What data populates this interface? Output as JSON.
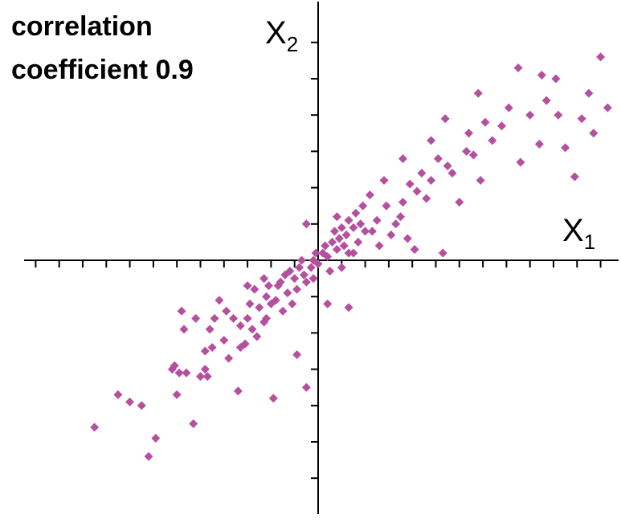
{
  "chart_data": {
    "type": "scatter",
    "title": "",
    "annotation": [
      "correlation",
      "coefficient 0.9"
    ],
    "xlabel": {
      "base": "X",
      "subscript": "1"
    },
    "ylabel": {
      "base": "X",
      "subscript": "2"
    },
    "xlim": [
      -12,
      12.5
    ],
    "ylim": [
      -7,
      7.1
    ],
    "x_ticks": [
      -12,
      -11,
      -10,
      -9,
      -8,
      -7,
      -6,
      -5,
      -4,
      -3,
      -2,
      -1,
      1,
      2,
      3,
      4,
      5,
      6,
      7,
      8,
      9,
      10,
      11,
      12
    ],
    "y_ticks": [
      -6,
      -5,
      -4,
      -3,
      -2,
      -1,
      1,
      2,
      3,
      4,
      5,
      6
    ],
    "grid": false,
    "legend": "none",
    "marker": "diamond",
    "colors": {
      "marker": "#b5509f",
      "axis": "#000000"
    },
    "series": [
      {
        "points": [
          [
            -9.5,
            -4.6
          ],
          [
            -8.5,
            -3.7
          ],
          [
            -7.5,
            -4.0
          ],
          [
            -7.2,
            -5.4
          ],
          [
            -6.0,
            -3.7
          ],
          [
            -6.2,
            -3.0
          ],
          [
            -6.1,
            -2.9
          ],
          [
            -5.9,
            -3.1
          ],
          [
            -5.6,
            -3.1
          ],
          [
            -5.0,
            -3.2
          ],
          [
            -4.8,
            -3.0
          ],
          [
            -4.7,
            -3.2
          ],
          [
            -4.8,
            -2.5
          ],
          [
            -4.5,
            -2.4
          ],
          [
            -4.6,
            -1.9
          ],
          [
            -4.4,
            -1.6
          ],
          [
            -3.9,
            -1.4
          ],
          [
            -5.7,
            -1.9
          ],
          [
            -5.8,
            -1.4
          ],
          [
            -5.2,
            -1.6
          ],
          [
            -4.0,
            -2.2
          ],
          [
            -3.6,
            -1.6
          ],
          [
            -4.2,
            -1.1
          ],
          [
            -3.8,
            -2.7
          ],
          [
            -3.3,
            -2.4
          ],
          [
            -3.1,
            -2.3
          ],
          [
            -3.0,
            -1.6
          ],
          [
            -3.3,
            -1.8
          ],
          [
            -2.8,
            -1.9
          ],
          [
            -2.6,
            -2.1
          ],
          [
            -2.9,
            -1.2
          ],
          [
            -2.7,
            -0.8
          ],
          [
            -3.0,
            -0.7
          ],
          [
            -2.5,
            -1.3
          ],
          [
            -2.3,
            -1.7
          ],
          [
            -2.2,
            -1.6
          ],
          [
            -2.2,
            -1.0
          ],
          [
            -2.0,
            -1.2
          ],
          [
            -2.3,
            -0.5
          ],
          [
            -2.1,
            -0.7
          ],
          [
            -1.8,
            -1.1
          ],
          [
            -1.7,
            -0.7
          ],
          [
            -1.6,
            -0.6
          ],
          [
            -1.5,
            -1.4
          ],
          [
            -1.3,
            -0.9
          ],
          [
            -1.4,
            -0.4
          ],
          [
            -1.2,
            -0.3
          ],
          [
            -1.0,
            -0.5
          ],
          [
            -0.9,
            -0.8
          ],
          [
            -1.1,
            -1.2
          ],
          [
            -0.8,
            -0.2
          ],
          [
            -0.6,
            -0.4
          ],
          [
            -0.5,
            -0.6
          ],
          [
            -0.7,
            0.0
          ],
          [
            -0.3,
            -0.2
          ],
          [
            -0.2,
            0.0
          ],
          [
            -0.2,
            -0.5
          ],
          [
            -0.1,
            0.2
          ],
          [
            0.0,
            -0.1
          ],
          [
            0.2,
            0.2
          ],
          [
            0.3,
            0.4
          ],
          [
            0.4,
            0.1
          ],
          [
            0.5,
            -0.3
          ],
          [
            0.6,
            0.5
          ],
          [
            0.7,
            0.8
          ],
          [
            0.8,
            0.3
          ],
          [
            0.9,
            0.6
          ],
          [
            1.0,
            0.9
          ],
          [
            1.0,
            -0.2
          ],
          [
            1.1,
            0.4
          ],
          [
            1.2,
            0.7
          ],
          [
            1.3,
            1.1
          ],
          [
            1.3,
            0.2
          ],
          [
            1.5,
            0.9
          ],
          [
            1.5,
            0.2
          ],
          [
            1.6,
            1.3
          ],
          [
            1.7,
            0.5
          ],
          [
            1.8,
            1.0
          ],
          [
            1.9,
            1.5
          ],
          [
            2.0,
            0.8
          ],
          [
            2.3,
            0.8
          ],
          [
            2.5,
            1.1
          ],
          [
            2.6,
            0.4
          ],
          [
            2.9,
            1.5
          ],
          [
            3.1,
            0.7
          ],
          [
            3.3,
            1.0
          ],
          [
            3.5,
            1.2
          ],
          [
            3.6,
            1.6
          ],
          [
            3.8,
            0.6
          ],
          [
            3.9,
            2.1
          ],
          [
            4.1,
            0.3
          ],
          [
            4.2,
            1.9
          ],
          [
            4.4,
            2.4
          ],
          [
            4.6,
            1.7
          ],
          [
            4.8,
            2.2
          ],
          [
            5.1,
            2.8
          ],
          [
            5.3,
            0.2
          ],
          [
            5.5,
            2.6
          ],
          [
            5.7,
            2.4
          ],
          [
            6.0,
            1.6
          ],
          [
            6.3,
            3.0
          ],
          [
            6.4,
            3.5
          ],
          [
            6.6,
            2.9
          ],
          [
            6.9,
            2.2
          ],
          [
            7.1,
            3.8
          ],
          [
            7.4,
            3.3
          ],
          [
            7.8,
            3.7
          ],
          [
            8.1,
            4.2
          ],
          [
            8.6,
            2.7
          ],
          [
            9.0,
            4.0
          ],
          [
            9.4,
            3.2
          ],
          [
            9.7,
            4.4
          ],
          [
            10.2,
            4.0
          ],
          [
            10.5,
            3.1
          ],
          [
            10.9,
            2.3
          ],
          [
            11.2,
            3.9
          ],
          [
            11.5,
            4.6
          ],
          [
            11.7,
            3.5
          ],
          [
            12.3,
            4.2
          ],
          [
            -5.3,
            -4.5
          ],
          [
            -3.4,
            -3.6
          ],
          [
            -1.9,
            -3.8
          ],
          [
            -6.9,
            -4.9
          ],
          [
            -8.0,
            -3.9
          ],
          [
            -0.5,
            -3.5
          ],
          [
            -0.9,
            -2.6
          ],
          [
            1.3,
            -1.3
          ],
          [
            0.4,
            -1.2
          ],
          [
            -0.5,
            1.0
          ],
          [
            0.8,
            1.2
          ],
          [
            2.2,
            1.8
          ],
          [
            2.8,
            2.2
          ],
          [
            3.6,
            2.8
          ],
          [
            4.8,
            3.3
          ],
          [
            5.4,
            3.9
          ],
          [
            6.8,
            4.6
          ],
          [
            8.5,
            5.3
          ],
          [
            9.5,
            5.1
          ],
          [
            10.1,
            5.0
          ],
          [
            12.0,
            5.6
          ]
        ]
      }
    ]
  }
}
